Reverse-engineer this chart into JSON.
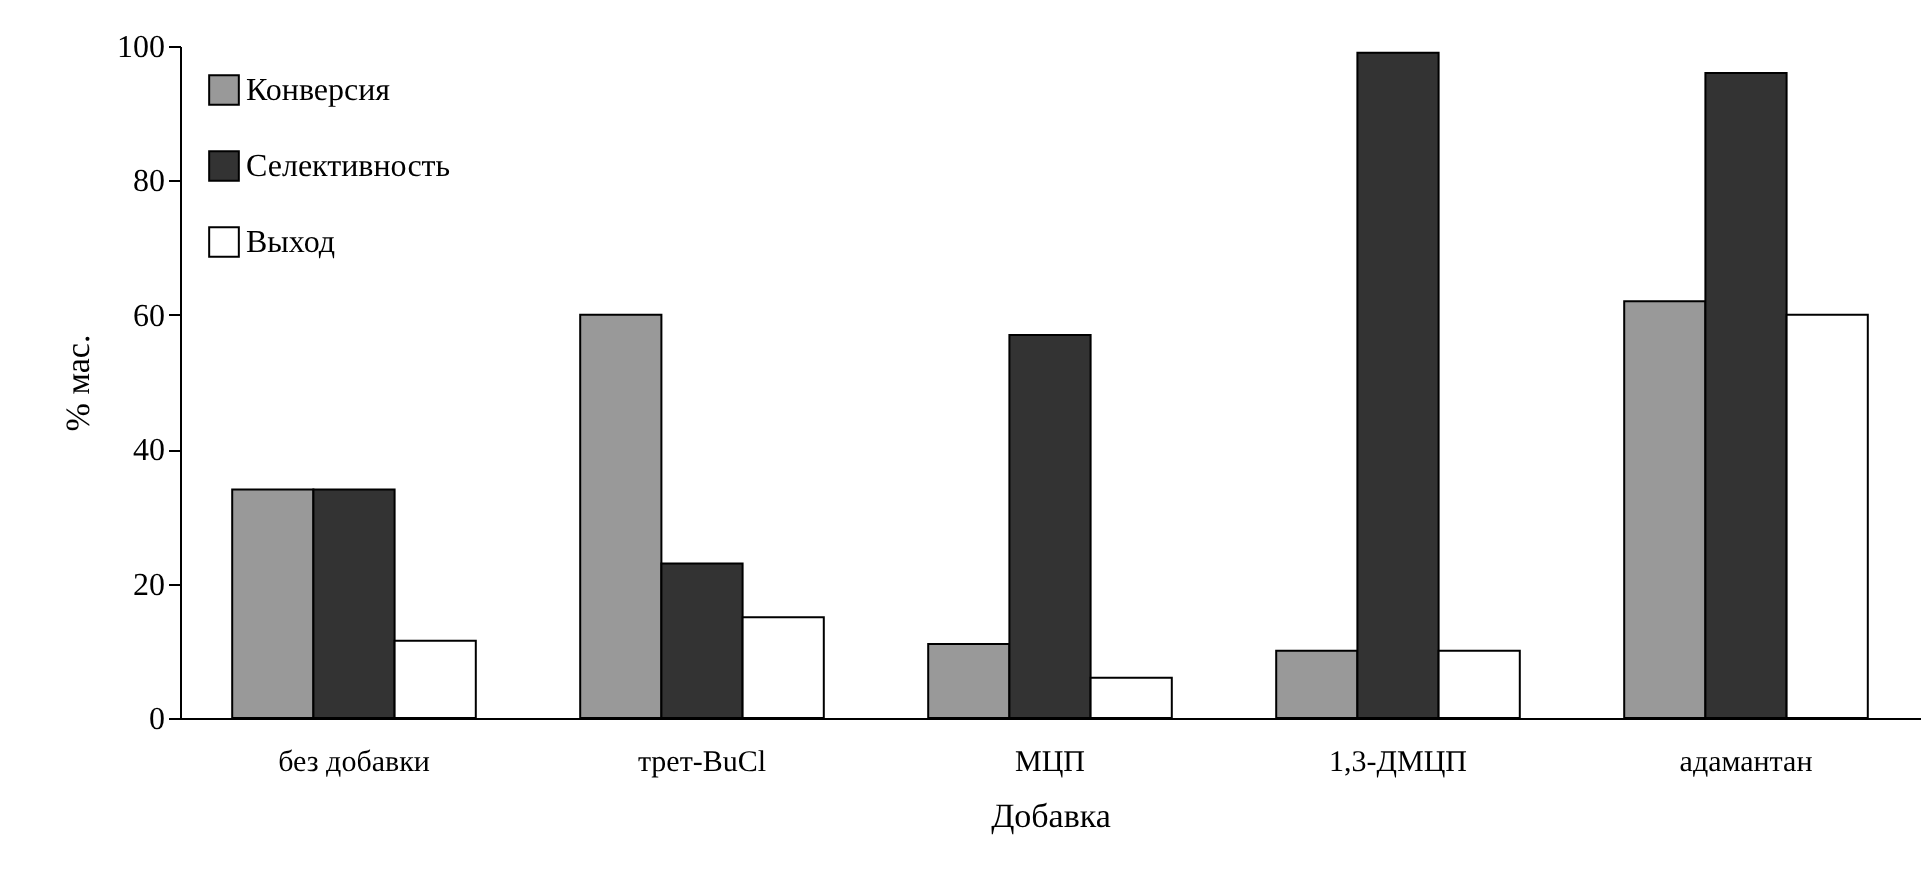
{
  "chart_data": {
    "type": "bar",
    "xlabel": "Добавка",
    "ylabel": "% мас.",
    "categories": [
      "без добавки",
      "трет-BuCl",
      "МЦП",
      "1,3-ДМЦП",
      "адамантан"
    ],
    "series": [
      {
        "name": "Конверсия",
        "color": "#999999",
        "values": [
          34,
          60,
          11,
          10,
          62
        ]
      },
      {
        "name": "Селективность",
        "color": "#333333",
        "values": [
          34,
          23,
          57,
          99,
          96
        ]
      },
      {
        "name": "Выход",
        "color": "#ffffff",
        "values": [
          11.5,
          15,
          6,
          10,
          60
        ]
      }
    ],
    "ylim": [
      0,
      100
    ],
    "yticks": [
      0,
      20,
      40,
      60,
      80,
      100
    ],
    "grid": false,
    "legend": "top left"
  }
}
